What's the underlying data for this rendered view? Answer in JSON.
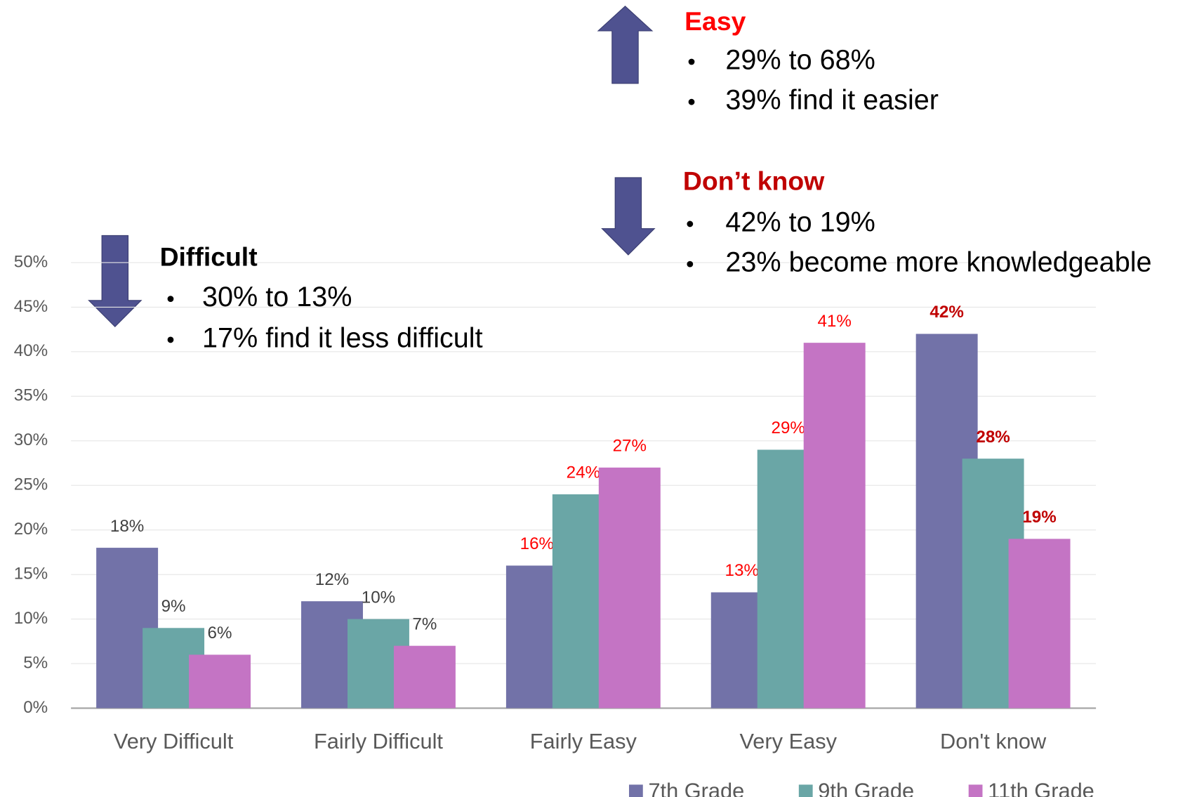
{
  "chart_data": {
    "type": "bar",
    "categories": [
      "Very Difficult",
      "Fairly Difficult",
      "Fairly Easy",
      "Very Easy",
      "Don't know"
    ],
    "series": [
      {
        "name": "7th Grade",
        "color": "#7272a8",
        "values": [
          18,
          12,
          16,
          13,
          42
        ],
        "value_labels": [
          "18%",
          "12%",
          "16%",
          "13%",
          "42%"
        ]
      },
      {
        "name": "9th Grade",
        "color": "#6aa6a6",
        "values": [
          9,
          10,
          24,
          29,
          28
        ],
        "value_labels": [
          "9%",
          "10%",
          "24%",
          "29%",
          "28%"
        ]
      },
      {
        "name": "11th Grade",
        "color": "#c474c4",
        "values": [
          6,
          7,
          27,
          41,
          19
        ],
        "value_labels": [
          "6%",
          "7%",
          "27%",
          "41%",
          "19%"
        ]
      }
    ],
    "label_colors": [
      "#404040",
      "#404040",
      "#ff0000",
      "#ff0000",
      "#c00000"
    ],
    "label_bold": [
      false,
      false,
      false,
      false,
      true
    ],
    "ylim": [
      0,
      50
    ],
    "yticks": [
      {
        "value": 0,
        "label": "0%"
      },
      {
        "value": 5,
        "label": "5%"
      },
      {
        "value": 10,
        "label": "10%"
      },
      {
        "value": 15,
        "label": "15%"
      },
      {
        "value": 20,
        "label": "20%"
      },
      {
        "value": 25,
        "label": "25%"
      },
      {
        "value": 30,
        "label": "30%"
      },
      {
        "value": 35,
        "label": "35%"
      },
      {
        "value": 40,
        "label": "40%"
      },
      {
        "value": 45,
        "label": "45%"
      },
      {
        "value": 50,
        "label": "50%"
      }
    ],
    "grid": true,
    "legend": "bottom-right",
    "annotations": [
      {
        "title": "Easy",
        "color": "#ff0000",
        "items": [
          "29% to 68%",
          "39% find it easier"
        ]
      },
      {
        "title": "Don’t know",
        "color": "#c00000",
        "items": [
          "42% to 19%",
          "23% become more knowledgeable"
        ]
      },
      {
        "title": "Difficult",
        "color": "#000000",
        "items": [
          "30% to 13%",
          "17% find it less difficult"
        ]
      }
    ]
  }
}
